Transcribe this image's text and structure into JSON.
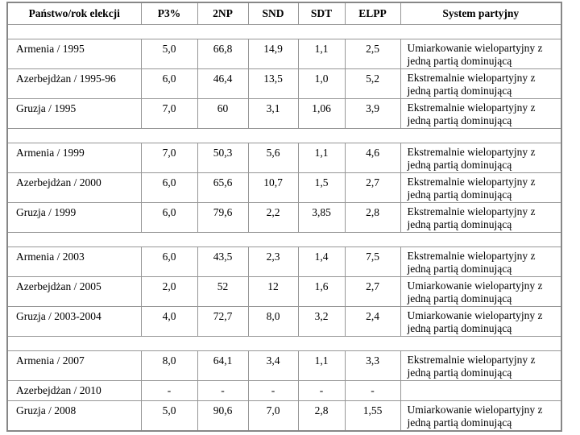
{
  "table": {
    "border_color": "#878787",
    "inner_border_color": "#969696",
    "text_color": "#000000",
    "background_color": "#ffffff",
    "header": {
      "cells": [
        "Państwo/rok elekcji",
        "P3%",
        "2NP",
        "SND",
        "SDT",
        "ELPP",
        "System partyjny"
      ]
    },
    "rows": [
      {
        "type": "spacer"
      },
      {
        "type": "data",
        "country": "Armenia / 1995",
        "p3": "5,0",
        "np2": "66,8",
        "snd": "14,9",
        "sdt": "1,1",
        "elpp": "2,5",
        "system": "Umiarkowanie wielopartyjny z jedną partią dominującą"
      },
      {
        "type": "data",
        "country": "Azerbejdżan / 1995-96",
        "p3": "6,0",
        "np2": "46,4",
        "snd": "13,5",
        "sdt": "1,0",
        "elpp": "5,2",
        "system": "Ekstremalnie wielopartyjny z jedną partią dominującą"
      },
      {
        "type": "data",
        "country": "Gruzja / 1995",
        "p3": "7,0",
        "np2": "60",
        "snd": "3,1",
        "sdt": "1,06",
        "elpp": "3,9",
        "system": "Ekstremalnie wielopartyjny z jedną partią dominującą"
      },
      {
        "type": "spacer"
      },
      {
        "type": "data",
        "country": "Armenia / 1999",
        "p3": "7,0",
        "np2": "50,3",
        "snd": "5,6",
        "sdt": "1,1",
        "elpp": "4,6",
        "system": "Ekstremalnie wielopartyjny z jedną partią dominującą"
      },
      {
        "type": "data",
        "country": "Azerbejdżan / 2000",
        "p3": "6,0",
        "np2": "65,6",
        "snd": "10,7",
        "sdt": "1,5",
        "elpp": "2,7",
        "system": "Ekstremalnie wielopartyjny z jedną partią dominującą"
      },
      {
        "type": "data",
        "country": "Gruzja / 1999",
        "p3": "6,0",
        "np2": "79,6",
        "snd": "2,2",
        "sdt": "3,85",
        "elpp": "2,8",
        "system": "Ekstremalnie wielopartyjny z jedną partią dominującą"
      },
      {
        "type": "spacer"
      },
      {
        "type": "data",
        "country": "Armenia / 2003",
        "p3": "6,0",
        "np2": "43,5",
        "snd": "2,3",
        "sdt": "1,4",
        "elpp": "7,5",
        "system": "Ekstremalnie wielopartyjny z jedną partią dominującą"
      },
      {
        "type": "data",
        "country": "Azerbejdżan / 2005",
        "p3": "2,0",
        "np2": "52",
        "snd": "12",
        "sdt": "1,6",
        "elpp": "2,7",
        "system": "Umiarkowanie wielopartyjny z jedną partią dominującą"
      },
      {
        "type": "data",
        "country": "Gruzja / 2003-2004",
        "p3": "4,0",
        "np2": "72,7",
        "snd": "8,0",
        "sdt": "3,2",
        "elpp": "2,4",
        "system": "Umiarkowanie wielopartyjny z jedną partią dominującą"
      },
      {
        "type": "spacer"
      },
      {
        "type": "data",
        "country": "Armenia / 2007",
        "p3": "8,0",
        "np2": "64,1",
        "snd": "3,4",
        "sdt": "1,1",
        "elpp": "3,3",
        "system": "Ekstremalnie wielopartyjny z jedną partią dominującą"
      },
      {
        "type": "data",
        "short": true,
        "country": "Azerbejdżan / 2010",
        "p3": "-",
        "np2": "-",
        "snd": "-",
        "sdt": "-",
        "elpp": "-",
        "system": ""
      },
      {
        "type": "data",
        "country": "Gruzja / 2008",
        "p3": "5,0",
        "np2": "90,6",
        "snd": "7,0",
        "sdt": "2,8",
        "elpp": "1,55",
        "system": "Umiarkowanie wielopartyjny z jedną partią dominującą"
      }
    ]
  }
}
